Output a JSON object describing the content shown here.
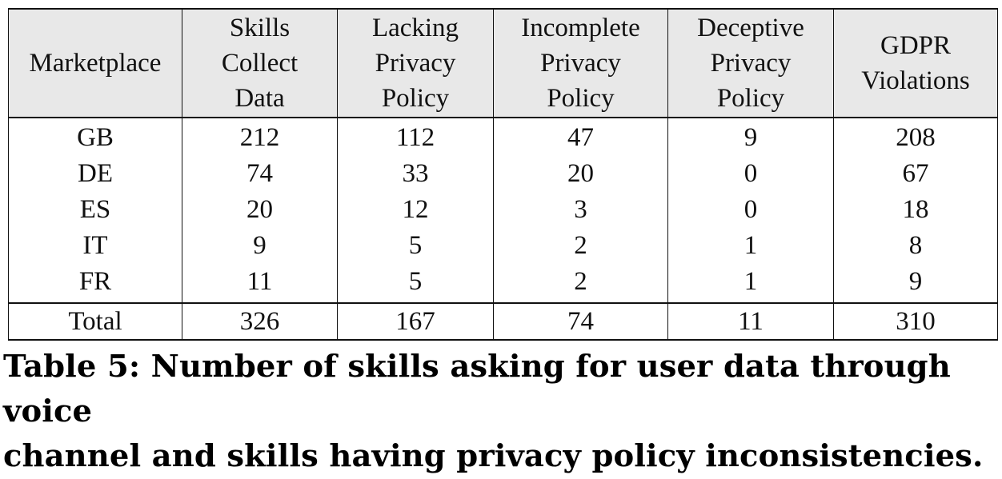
{
  "table": {
    "headers": [
      [
        "Marketplace"
      ],
      [
        "Skills",
        "Collect",
        "Data"
      ],
      [
        "Lacking",
        "Privacy",
        "Policy"
      ],
      [
        "Incomplete",
        "Privacy",
        "Policy"
      ],
      [
        "Deceptive",
        "Privacy",
        "Policy"
      ],
      [
        "GDPR",
        "Violations"
      ]
    ],
    "rows": [
      [
        "GB",
        "212",
        "112",
        "47",
        "9",
        "208"
      ],
      [
        "DE",
        "74",
        "33",
        "20",
        "0",
        "67"
      ],
      [
        "ES",
        "20",
        "12",
        "3",
        "0",
        "18"
      ],
      [
        "IT",
        "9",
        "5",
        "2",
        "1",
        "8"
      ],
      [
        "FR",
        "11",
        "5",
        "2",
        "1",
        "9"
      ]
    ],
    "total": [
      "Total",
      "326",
      "167",
      "74",
      "11",
      "310"
    ]
  },
  "caption": {
    "line1": "Table 5: Number of skills asking for user data through voice",
    "line2": "channel and skills having privacy policy inconsistencies."
  },
  "chart_data": {
    "type": "table",
    "columns": [
      "Marketplace",
      "Skills Collect Data",
      "Lacking Privacy Policy",
      "Incomplete Privacy Policy",
      "Deceptive Privacy Policy",
      "GDPR Violations"
    ],
    "rows": [
      [
        "GB",
        212,
        112,
        47,
        9,
        208
      ],
      [
        "DE",
        74,
        33,
        20,
        0,
        67
      ],
      [
        "ES",
        20,
        12,
        3,
        0,
        18
      ],
      [
        "IT",
        9,
        5,
        2,
        1,
        8
      ],
      [
        "FR",
        11,
        5,
        2,
        1,
        9
      ],
      [
        "Total",
        326,
        167,
        74,
        11,
        310
      ]
    ]
  }
}
